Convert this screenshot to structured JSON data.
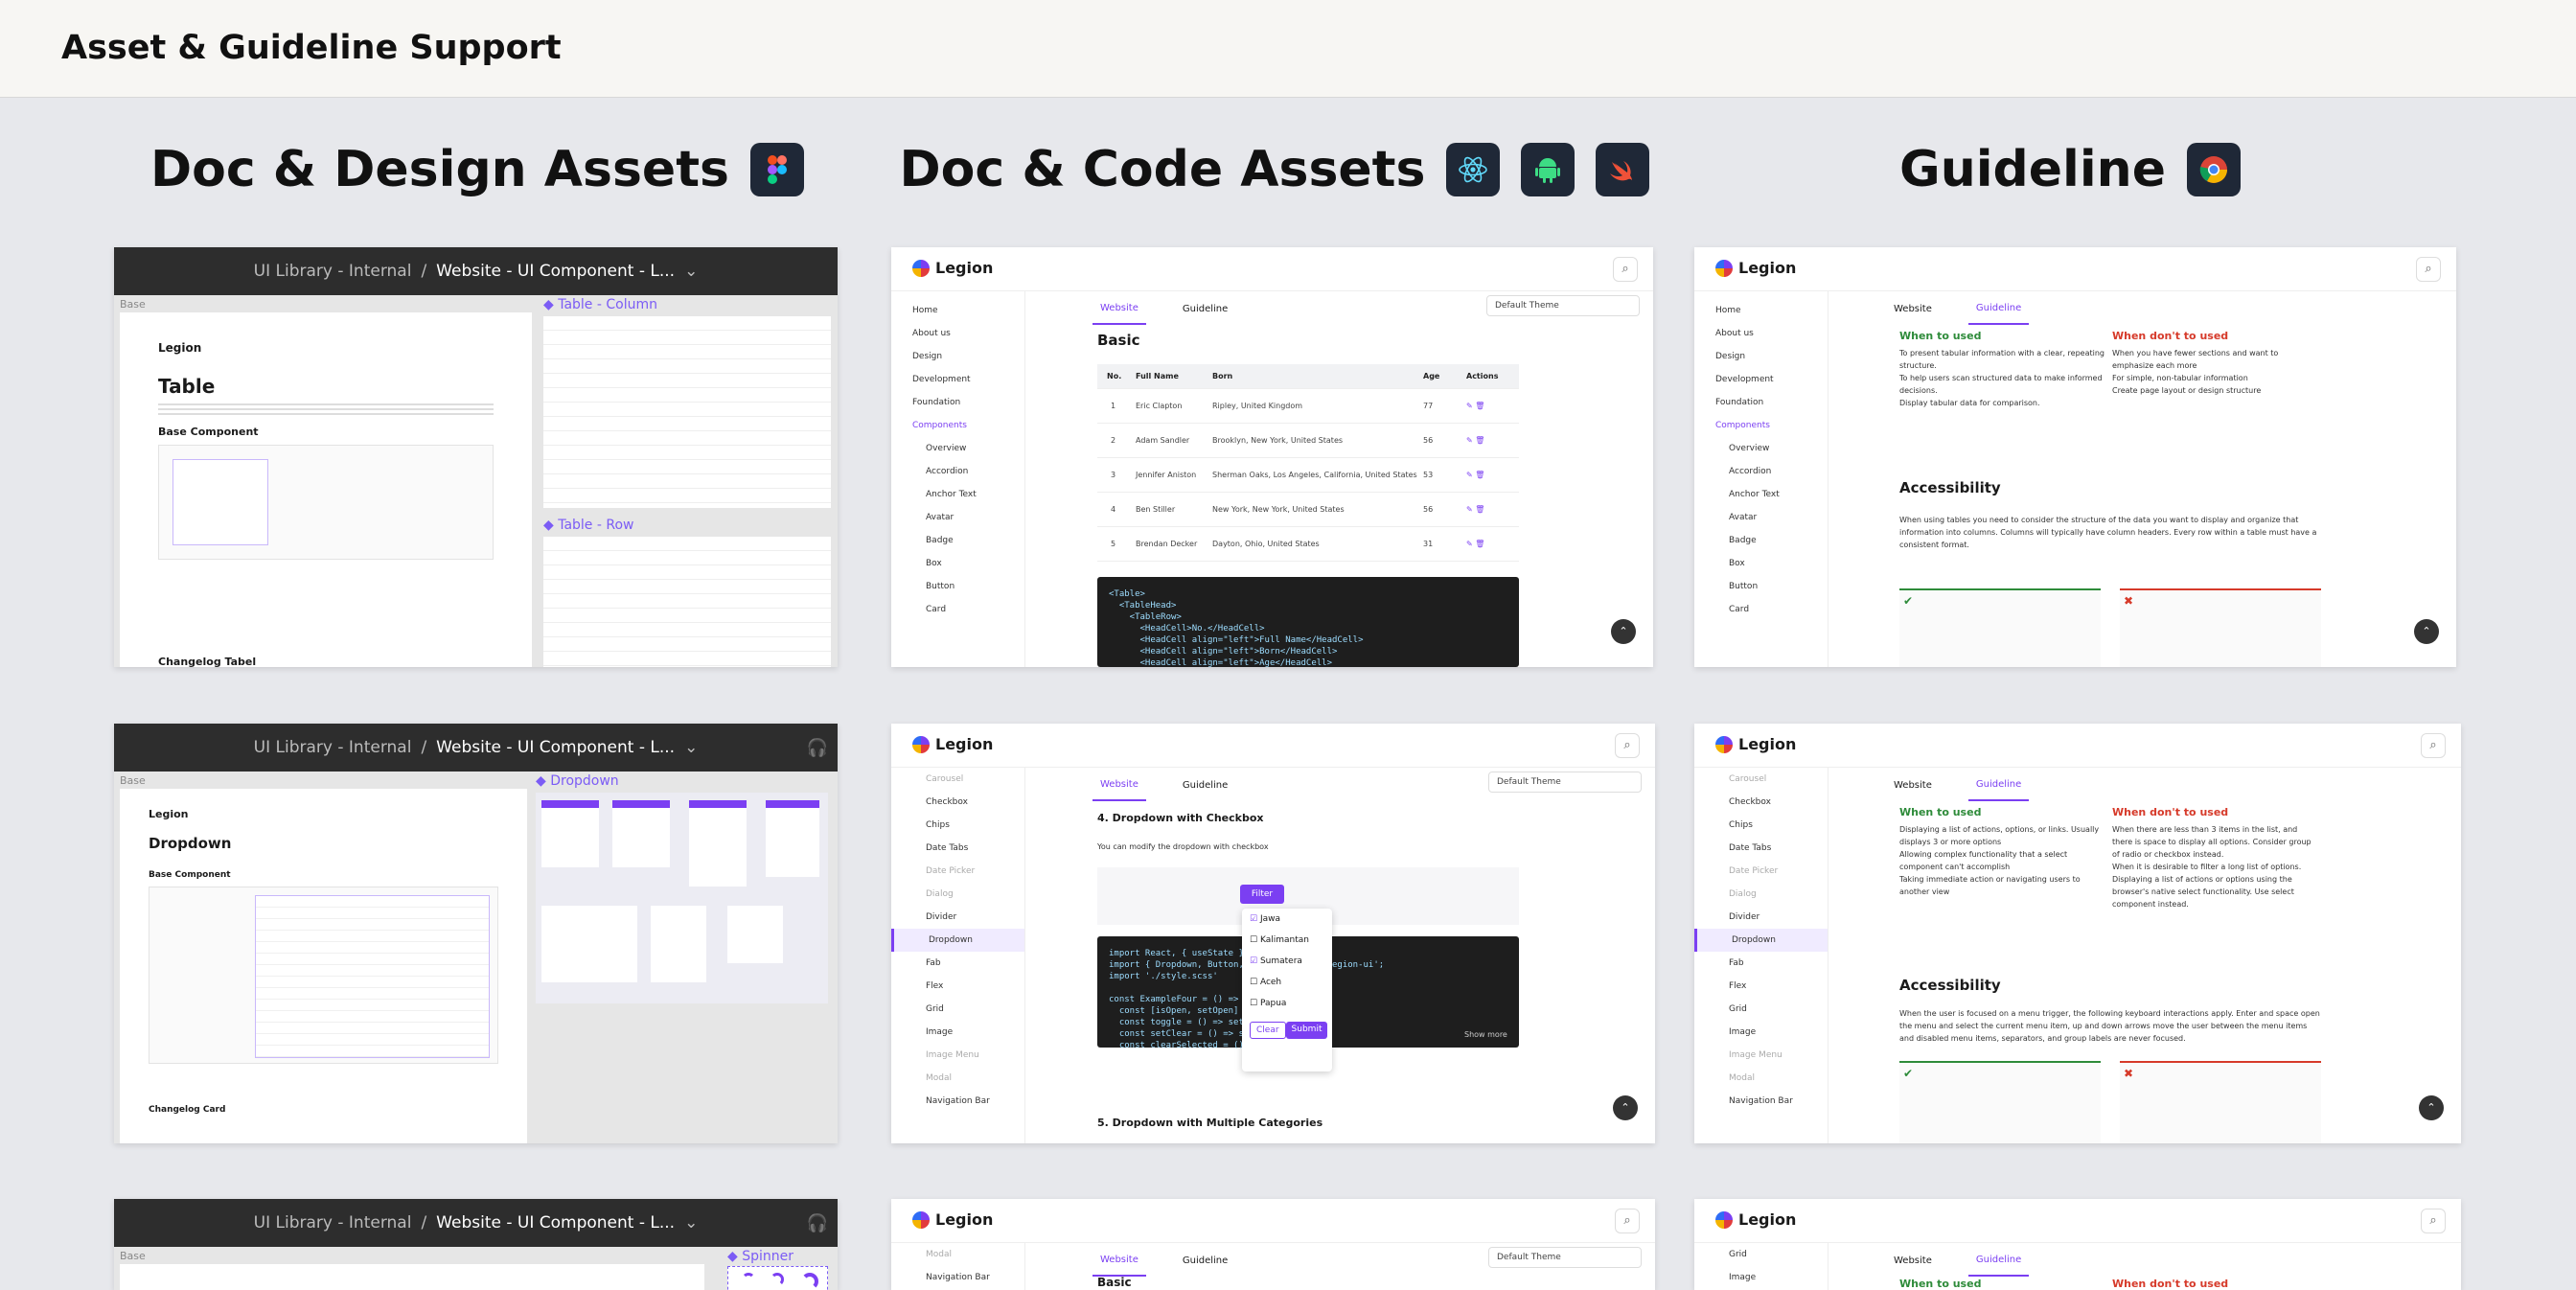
{
  "page": {
    "title": "Asset & Guideline Support"
  },
  "columns": [
    {
      "title": "Doc & Design Assets",
      "icons": [
        "figma-icon"
      ]
    },
    {
      "title": "Doc & Code Assets",
      "icons": [
        "react-icon",
        "android-icon",
        "swift-icon"
      ]
    },
    {
      "title": "Guideline",
      "icons": [
        "chrome-icon"
      ]
    }
  ],
  "figma": {
    "breadcrumb_root": "UI Library - Internal",
    "sep": "/",
    "file": "Website - UI Component - L...",
    "base": "Base",
    "cards": [
      {
        "heading": "Table",
        "sub": "Base Component",
        "changelog": "Changelog Tabel",
        "props": [
          "Table - Column",
          "Table - Row"
        ]
      },
      {
        "heading": "Dropdown",
        "sub": "Base Component",
        "changelog": "Changelog Card",
        "props": [
          "Dropdown"
        ]
      },
      {
        "heading": "",
        "sub": "",
        "changelog": "",
        "props": [
          "Spinner"
        ]
      }
    ]
  },
  "legion": {
    "brand": "Legion",
    "tab_website": "Website",
    "tab_guideline": "Guideline",
    "theme": "Default Theme",
    "nav1": [
      "Home",
      "About us",
      "Design",
      "Development",
      "Foundation",
      "Components",
      "Overview",
      "Accordion",
      "Anchor Text",
      "Avatar",
      "Badge",
      "Box",
      "Button",
      "Card"
    ],
    "nav2": [
      "Carousel",
      "Checkbox",
      "Chips",
      "Date Tabs",
      "Date Picker",
      "Dialog",
      "Divider",
      "Dropdown",
      "Fab",
      "Flex",
      "Grid",
      "Image",
      "Image Menu",
      "Modal",
      "Navigation Bar"
    ],
    "nav3": [
      "Modal",
      "Navigation Bar"
    ],
    "nav4": [
      "Grid",
      "Image"
    ],
    "basic": "Basic",
    "table_headers": [
      "No.",
      "Full Name",
      "Born",
      "Age",
      "Actions"
    ],
    "table_rows": [
      [
        "1",
        "Eric Clapton",
        "Ripley, United Kingdom",
        "77"
      ],
      [
        "2",
        "Adam Sandler",
        "Brooklyn, New York, United States",
        "56"
      ],
      [
        "3",
        "Jennifer Aniston",
        "Sherman Oaks, Los Angeles, California, United States",
        "53"
      ],
      [
        "4",
        "Ben Stiller",
        "New York, New York, United States",
        "56"
      ],
      [
        "5",
        "Brendan Decker",
        "Dayton, Ohio, United States",
        "31"
      ]
    ],
    "code1": "<Table>\n  <TableHead>\n    <TableRow>\n      <HeadCell>No.</HeadCell>\n      <HeadCell align=\"left\">Full Name</HeadCell>\n      <HeadCell align=\"left\">Born</HeadCell>\n      <HeadCell align=\"left\">Age</HeadCell>\n      <HeadCell>Actions</HeadCell>",
    "dd_section": "4. Dropdown with Checkbox",
    "dd_text": "You can modify the dropdown with checkbox",
    "dd_filter": "Filter",
    "dd_options": [
      "Jawa",
      "Kalimantan",
      "Sumatera",
      "Aceh",
      "Papua"
    ],
    "dd_clear": "Clear",
    "dd_submit": "Submit",
    "dd_showmore": "Show more",
    "dd_next": "5. Dropdown with Multiple Categories",
    "code2": "import React, { useState } from 'react';\nimport { Dropdown, Button, Ch... } from '@legion-ui';\nimport './style.scss'\n\nconst ExampleFour = () => {\n  const [isOpen, setOpen] = useState(false)\n  const toggle = () => setOpen(!isOpen)\n  const setClear = () => setChecked([])\n  const clearSelected = () => {",
    "when_used": "When to used",
    "when_not": "When don't to used",
    "g1_used": [
      "To present tabular information with a clear, repeating structure.",
      "To help users scan structured data to make informed decisions.",
      "Display tabular data for comparison."
    ],
    "g1_not": [
      "When you have fewer sections and want to emphasize each more",
      "For simple, non-tabular information",
      "Create page layout or design structure"
    ],
    "g2_used": [
      "Displaying a list of actions, options, or links. Usually displays 3 or more options",
      "Allowing complex functionality that a select component can't accomplish",
      "Taking immediate action or navigating users to another view"
    ],
    "g2_not": [
      "When there are less than 3 items in the list, and there is space to display all options. Consider group of radio or checkbox instead.",
      "When it is desirable to filter a long list of options.",
      "Displaying a list of actions or options using the browser's native select functionality. Use select component instead."
    ],
    "accessibility": "Accessibility",
    "acc1": "When using tables you need to consider the structure of the data you want to display and organize that information into columns. Columns will typically have column headers. Every row within a table must have a consistent format.",
    "acc2": "When the user is focused on a menu trigger, the following keyboard interactions apply. Enter and space open the menu and select the current menu item, up and down arrows move the user between the menu items and disabled menu items, separators, and group labels are never focused."
  }
}
